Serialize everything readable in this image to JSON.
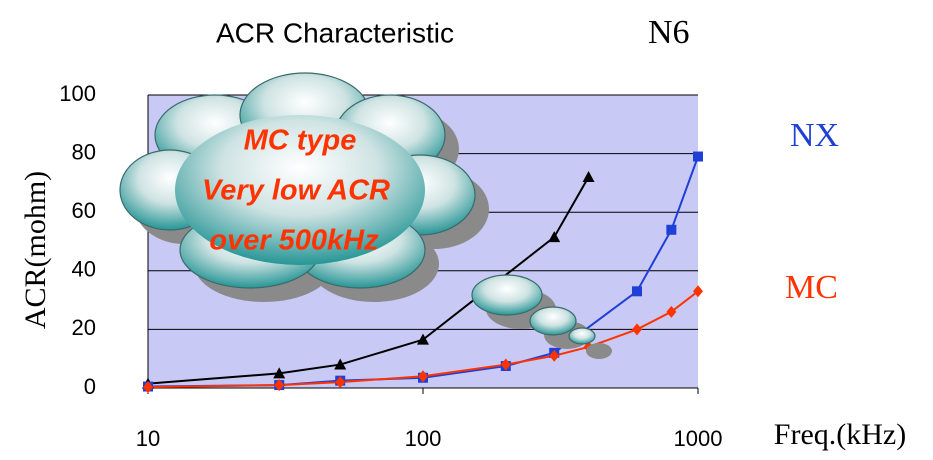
{
  "chart_data": {
    "type": "line",
    "title": "ACR Characteristic",
    "x_label": "Freq.(kHz)",
    "y_label": "ACR(mohm)",
    "log_x": true,
    "xlim": [
      10,
      1000
    ],
    "xticks": [
      10,
      100,
      1000
    ],
    "ylim": [
      0,
      100
    ],
    "yticks": [
      0,
      20,
      40,
      60,
      80,
      100
    ],
    "grid": true,
    "series": [
      {
        "name": "N6",
        "color": "#000000",
        "marker": "triangle",
        "x": [
          10,
          30,
          50,
          100,
          300,
          400
        ],
        "values": [
          1.5,
          5,
          8,
          16.5,
          51.5,
          72
        ]
      },
      {
        "name": "NX",
        "color": "#1f3fd6",
        "marker": "square",
        "x": [
          10,
          30,
          50,
          100,
          200,
          300,
          600,
          800,
          1000
        ],
        "values": [
          0.5,
          1,
          2.5,
          3.5,
          7.5,
          12,
          33,
          54,
          79
        ]
      },
      {
        "name": "MC",
        "color": "#ff3300",
        "marker": "diamond",
        "x": [
          10,
          30,
          50,
          100,
          200,
          300,
          400,
          600,
          800,
          1000
        ],
        "values": [
          0.3,
          1,
          2,
          4,
          8,
          11,
          14,
          20,
          26,
          33
        ]
      }
    ],
    "annotation": [
      "MC type",
      "Very low ACR",
      "over 500kHz"
    ]
  }
}
